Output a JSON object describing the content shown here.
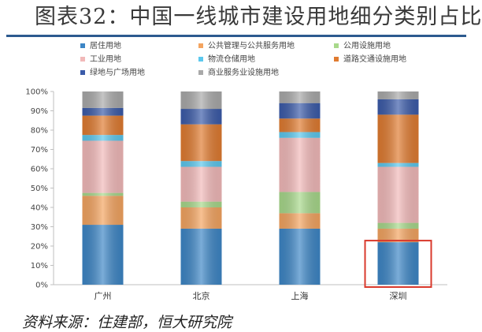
{
  "title": "图表32：中国一线城市建设用地细分类别占比",
  "source": "资料来源：住建部，恒大研究院",
  "chart_data": {
    "type": "bar",
    "stacked": true,
    "title": "图表32：中国一线城市建设用地细分类别占比",
    "categories": [
      "广州",
      "北京",
      "上海",
      "深圳"
    ],
    "ylim": [
      0,
      100
    ],
    "yticks": [
      "0%",
      "10%",
      "20%",
      "30%",
      "40%",
      "50%",
      "60%",
      "70%",
      "80%",
      "90%",
      "100%"
    ],
    "legend_position": "top",
    "series": [
      {
        "name": "居住用地",
        "color": "#3d86c6",
        "values": [
          31,
          29,
          29,
          22
        ]
      },
      {
        "name": "公共管理与公共服务用地",
        "color": "#f4a460",
        "values": [
          15,
          11,
          8,
          7
        ]
      },
      {
        "name": "公用设施用地",
        "color": "#a8d98b",
        "values": [
          1.5,
          3,
          11,
          3
        ]
      },
      {
        "name": "工业用地",
        "color": "#f2b9b9",
        "values": [
          27,
          18,
          28,
          29
        ]
      },
      {
        "name": "物流仓储用地",
        "color": "#5bc8ee",
        "values": [
          3,
          3,
          3,
          2
        ]
      },
      {
        "name": "道路交通设施用地",
        "color": "#e07b30",
        "values": [
          10,
          19,
          7,
          25
        ]
      },
      {
        "name": "绿地与广场用地",
        "color": "#3b5ba9",
        "values": [
          4,
          8,
          8,
          8
        ]
      },
      {
        "name": "商业服务业设施用地",
        "color": "#a9a9a9",
        "values": [
          8.5,
          9,
          6,
          4
        ]
      }
    ],
    "annotation": {
      "type": "highlight-box",
      "target": "深圳",
      "series": "居住用地",
      "color": "#d9392c"
    }
  }
}
